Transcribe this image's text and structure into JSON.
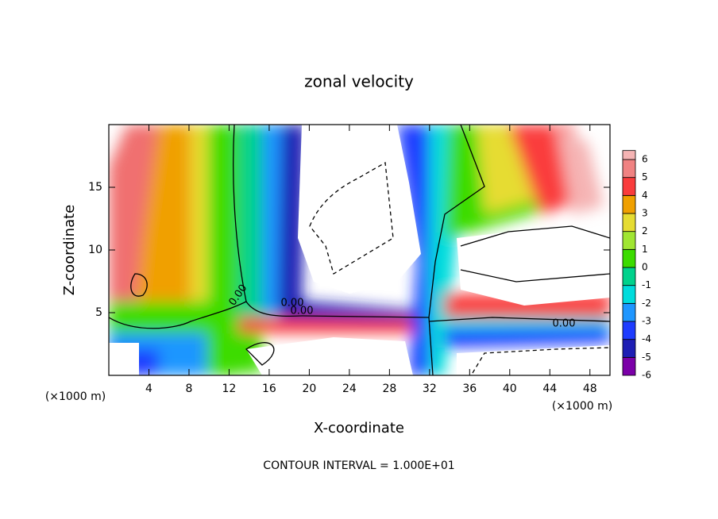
{
  "chart_data": {
    "type": "contour",
    "title": "zonal velocity",
    "xlabel": "X-coordinate",
    "ylabel": "Z-coordinate",
    "x_unit": "(×1000 m)",
    "y_unit": "(×1000 m)",
    "footnote": "CONTOUR INTERVAL = 1.000E+01",
    "xlim": [
      0,
      50
    ],
    "xticks": [
      4,
      8,
      12,
      16,
      20,
      24,
      28,
      32,
      36,
      40,
      44,
      48
    ],
    "ylim": [
      0,
      20
    ],
    "yticks": [
      5,
      10,
      15
    ],
    "contour_labels": [
      "0.00",
      "0.00",
      "0.00",
      "0.00"
    ],
    "colorbar": {
      "levels": [
        -6,
        -5,
        -4,
        -3,
        -2,
        -1,
        0,
        1,
        2,
        3,
        4,
        5,
        6
      ],
      "colors": [
        "#7b00a8",
        "#1e1eb4",
        "#1e3cff",
        "#1e96ff",
        "#00dcdc",
        "#00d28c",
        "#3cdc00",
        "#a0e632",
        "#e6dc32",
        "#f0a000",
        "#fa3c3c",
        "#f08282",
        "#f5b4b4"
      ]
    }
  }
}
